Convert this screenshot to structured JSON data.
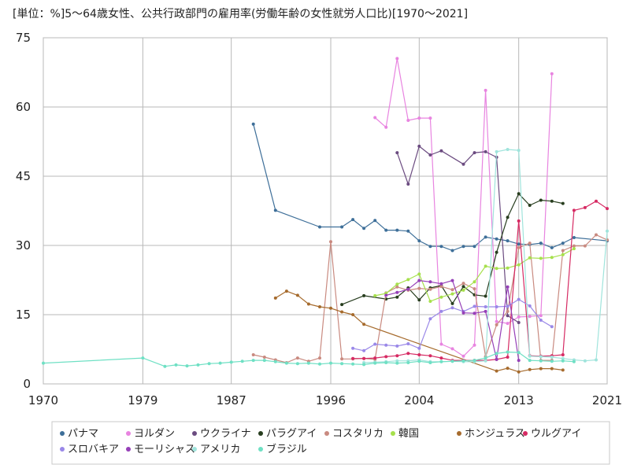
{
  "chart_data": {
    "type": "line",
    "title": "[単位：%]5～64歳女性、公共行政部門の雇用率(労働年齢の女性就労人口比)[1970～2021]",
    "xlabel": "",
    "ylabel": "",
    "xlim": [
      1970,
      2021
    ],
    "ylim": [
      0,
      75
    ],
    "x_ticks": [
      1970,
      1979,
      1987,
      1996,
      2004,
      2013,
      2021
    ],
    "y_ticks": [
      0,
      15,
      30,
      45,
      60,
      75
    ],
    "grid": true,
    "legend_position": "bottom",
    "series": [
      {
        "name": "パナマ",
        "color": "#3e6f99",
        "points": [
          [
            1989,
            56.3
          ],
          [
            1991,
            37.6
          ],
          [
            1995,
            34
          ],
          [
            1997,
            34
          ],
          [
            1998,
            35.6
          ],
          [
            1999,
            33.7
          ],
          [
            2000,
            35.4
          ],
          [
            2001,
            33.3
          ],
          [
            2002,
            33.3
          ],
          [
            2003,
            33.1
          ],
          [
            2004,
            31
          ],
          [
            2005,
            29.8
          ],
          [
            2006,
            29.8
          ],
          [
            2007,
            28.9
          ],
          [
            2008,
            29.8
          ],
          [
            2009,
            29.8
          ],
          [
            2010,
            31.8
          ],
          [
            2011,
            31.4
          ],
          [
            2012,
            31
          ],
          [
            2013,
            30.3
          ],
          [
            2014,
            30.2
          ],
          [
            2015,
            30.5
          ],
          [
            2016,
            29.5
          ],
          [
            2017,
            30.5
          ],
          [
            2018,
            31.7
          ],
          [
            2021,
            31
          ]
        ]
      },
      {
        "name": "ヨルダン",
        "color": "#e884e0",
        "points": [
          [
            2000,
            57.7
          ],
          [
            2001,
            55.6
          ],
          [
            2002,
            70.5
          ],
          [
            2003,
            57.1
          ],
          [
            2004,
            57.6
          ],
          [
            2005,
            57.6
          ],
          [
            2006,
            8.6
          ],
          [
            2007,
            7.6
          ],
          [
            2008,
            6
          ],
          [
            2009,
            8.4
          ],
          [
            2010,
            63.6
          ],
          [
            2011,
            13.5
          ],
          [
            2012,
            13.1
          ],
          [
            2013,
            14.5
          ],
          [
            2014,
            14.6
          ],
          [
            2015,
            14.8
          ],
          [
            2016,
            67.2
          ]
        ]
      },
      {
        "name": "ウクライナ",
        "color": "#6b4b80",
        "points": [
          [
            2002,
            50.1
          ],
          [
            2003,
            43.3
          ],
          [
            2004,
            51.5
          ],
          [
            2005,
            49.6
          ],
          [
            2006,
            50.5
          ],
          [
            2008,
            47.6
          ],
          [
            2009,
            50.1
          ],
          [
            2010,
            50.3
          ],
          [
            2011,
            49.1
          ],
          [
            2012,
            14.8
          ],
          [
            2013,
            13.3
          ]
        ]
      },
      {
        "name": "パラグアイ",
        "color": "#273d1e",
        "points": [
          [
            1997,
            17.2
          ],
          [
            1999,
            19.1
          ],
          [
            2001,
            18.4
          ],
          [
            2002,
            18.8
          ],
          [
            2003,
            20.8
          ],
          [
            2004,
            18.2
          ],
          [
            2005,
            20.8
          ],
          [
            2006,
            21.3
          ],
          [
            2007,
            17.4
          ],
          [
            2008,
            21.1
          ],
          [
            2009,
            19.3
          ],
          [
            2010,
            19
          ],
          [
            2011,
            28.5
          ],
          [
            2012,
            36.1
          ],
          [
            2013,
            41.2
          ],
          [
            2014,
            38.7
          ],
          [
            2015,
            39.8
          ],
          [
            2016,
            39.6
          ],
          [
            2017,
            39.1
          ]
        ]
      },
      {
        "name": "コスタリカ",
        "color": "#c98a80",
        "points": [
          [
            1989,
            6.3
          ],
          [
            1990,
            5.8
          ],
          [
            1991,
            5.2
          ],
          [
            1992,
            4.6
          ],
          [
            1993,
            5.6
          ],
          [
            1994,
            4.9
          ],
          [
            1995,
            5.6
          ],
          [
            1996,
            30.8
          ],
          [
            1997,
            5.4
          ],
          [
            1998,
            5.4
          ],
          [
            1999,
            5.5
          ],
          [
            2000,
            5.3
          ],
          [
            2001,
            19.7
          ],
          [
            2002,
            21
          ],
          [
            2003,
            20.3
          ],
          [
            2004,
            20.7
          ],
          [
            2005,
            20.5
          ],
          [
            2006,
            21.1
          ],
          [
            2007,
            20.4
          ],
          [
            2008,
            21.8
          ],
          [
            2009,
            20.6
          ],
          [
            2010,
            5.9
          ],
          [
            2011,
            12.8
          ],
          [
            2012,
            15.7
          ],
          [
            2013,
            29.5
          ],
          [
            2014,
            30.5
          ],
          [
            2015,
            5.1
          ],
          [
            2016,
            5.1
          ],
          [
            2017,
            28.9
          ],
          [
            2018,
            29.9
          ],
          [
            2019,
            29.9
          ],
          [
            2020,
            32.3
          ],
          [
            2021,
            31.2
          ]
        ]
      },
      {
        "name": "韓国",
        "color": "#a6e04c",
        "points": [
          [
            2000,
            19.1
          ],
          [
            2001,
            19.6
          ],
          [
            2002,
            21.6
          ],
          [
            2003,
            22.6
          ],
          [
            2004,
            23.8
          ],
          [
            2005,
            17.9
          ],
          [
            2006,
            18.8
          ],
          [
            2007,
            19.5
          ],
          [
            2008,
            20.3
          ],
          [
            2009,
            22.1
          ],
          [
            2010,
            25.5
          ],
          [
            2011,
            25
          ],
          [
            2012,
            25.1
          ],
          [
            2013,
            25.8
          ],
          [
            2014,
            27.3
          ],
          [
            2015,
            27.2
          ],
          [
            2016,
            27.4
          ],
          [
            2017,
            28
          ],
          [
            2018,
            29.3
          ]
        ]
      },
      {
        "name": "ホンジュラス",
        "color": "#a66b2d",
        "points": [
          [
            1991,
            18.6
          ],
          [
            1992,
            20.1
          ],
          [
            1993,
            19.2
          ],
          [
            1994,
            17.3
          ],
          [
            1995,
            16.7
          ],
          [
            1996,
            16.4
          ],
          [
            1997,
            15.6
          ],
          [
            1998,
            15
          ],
          [
            1999,
            12.9
          ],
          [
            2011,
            2.8
          ],
          [
            2012,
            3.4
          ],
          [
            2013,
            2.6
          ],
          [
            2014,
            3.1
          ],
          [
            2015,
            3.3
          ],
          [
            2016,
            3.3
          ],
          [
            2017,
            3
          ]
        ]
      },
      {
        "name": "ウルグアイ",
        "color": "#d62a63",
        "points": [
          [
            1998,
            5.5
          ],
          [
            1999,
            5.5
          ],
          [
            2000,
            5.6
          ],
          [
            2001,
            5.9
          ],
          [
            2002,
            6.1
          ],
          [
            2003,
            6.6
          ],
          [
            2004,
            6.3
          ],
          [
            2005,
            6.1
          ],
          [
            2006,
            5.6
          ],
          [
            2007,
            5.1
          ],
          [
            2008,
            5.1
          ],
          [
            2009,
            5.1
          ],
          [
            2010,
            5.1
          ],
          [
            2011,
            5.3
          ],
          [
            2012,
            5.8
          ],
          [
            2013,
            35.3
          ],
          [
            2014,
            6.1
          ],
          [
            2015,
            6
          ],
          [
            2016,
            6.1
          ],
          [
            2017,
            6.3
          ],
          [
            2018,
            37.6
          ],
          [
            2019,
            38.2
          ],
          [
            2020,
            39.6
          ],
          [
            2021,
            38
          ]
        ]
      },
      {
        "name": "スロバキア",
        "color": "#9a88e8",
        "points": [
          [
            1998,
            7.7
          ],
          [
            1999,
            7.2
          ],
          [
            2000,
            8.6
          ],
          [
            2001,
            8.4
          ],
          [
            2002,
            8.2
          ],
          [
            2003,
            8.7
          ],
          [
            2004,
            7.7
          ],
          [
            2005,
            14.1
          ],
          [
            2006,
            15.7
          ],
          [
            2007,
            16.5
          ],
          [
            2008,
            15.7
          ],
          [
            2009,
            16.8
          ],
          [
            2010,
            16.7
          ],
          [
            2011,
            16.7
          ],
          [
            2012,
            16.8
          ],
          [
            2013,
            18.3
          ],
          [
            2014,
            16.9
          ],
          [
            2015,
            13.8
          ],
          [
            2016,
            12.4
          ]
        ]
      },
      {
        "name": "モーリシャス",
        "color": "#9640b8",
        "points": [
          [
            2001,
            19.2
          ],
          [
            2002,
            19.8
          ],
          [
            2003,
            20.5
          ],
          [
            2004,
            22.4
          ],
          [
            2005,
            22.1
          ],
          [
            2006,
            21.7
          ],
          [
            2007,
            22.4
          ],
          [
            2008,
            15.4
          ],
          [
            2009,
            15.3
          ],
          [
            2010,
            15.7
          ],
          [
            2011,
            5.3
          ],
          [
            2012,
            21
          ],
          [
            2013,
            5.1
          ]
        ]
      },
      {
        "name": "アメリカ",
        "color": "#a0e4dc",
        "points": [
          [
            1999,
            4.6
          ],
          [
            2000,
            4.7
          ],
          [
            2001,
            4.8
          ],
          [
            2002,
            5
          ],
          [
            2003,
            5
          ],
          [
            2004,
            5.2
          ],
          [
            2005,
            4.8
          ],
          [
            2006,
            4.8
          ],
          [
            2007,
            4.9
          ],
          [
            2008,
            4.8
          ],
          [
            2009,
            4.8
          ],
          [
            2010,
            5
          ],
          [
            2011,
            50.3
          ],
          [
            2012,
            50.8
          ],
          [
            2013,
            50.6
          ],
          [
            2014,
            6
          ],
          [
            2015,
            5.9
          ],
          [
            2016,
            5.8
          ],
          [
            2017,
            5.5
          ],
          [
            2018,
            5.2
          ],
          [
            2019,
            5
          ],
          [
            2020,
            5.2
          ],
          [
            2021,
            33.1
          ]
        ]
      },
      {
        "name": "ブラジル",
        "color": "#6fe0c4",
        "points": [
          [
            1970,
            4.5
          ],
          [
            1979,
            5.6
          ],
          [
            1981,
            3.8
          ],
          [
            1982,
            4.1
          ],
          [
            1983,
            3.9
          ],
          [
            1984,
            4.1
          ],
          [
            1985,
            4.4
          ],
          [
            1986,
            4.5
          ],
          [
            1987,
            4.7
          ],
          [
            1988,
            4.9
          ],
          [
            1989,
            5.1
          ],
          [
            1990,
            5.1
          ],
          [
            1991,
            4.8
          ],
          [
            1992,
            4.5
          ],
          [
            1993,
            4.4
          ],
          [
            1994,
            4.5
          ],
          [
            1995,
            4.3
          ],
          [
            1996,
            4.5
          ],
          [
            1997,
            4.4
          ],
          [
            1998,
            4.3
          ],
          [
            1999,
            4.2
          ],
          [
            2000,
            4.5
          ],
          [
            2001,
            4.6
          ],
          [
            2002,
            4.5
          ],
          [
            2003,
            4.6
          ],
          [
            2004,
            4.9
          ],
          [
            2005,
            4.6
          ],
          [
            2006,
            4.8
          ],
          [
            2007,
            4.9
          ],
          [
            2008,
            5
          ],
          [
            2009,
            5.1
          ],
          [
            2010,
            5.6
          ],
          [
            2011,
            6.6
          ],
          [
            2012,
            6.9
          ],
          [
            2013,
            6.8
          ],
          [
            2014,
            5.1
          ],
          [
            2015,
            5
          ],
          [
            2016,
            4.9
          ],
          [
            2017,
            5
          ],
          [
            2018,
            4.8
          ]
        ]
      }
    ]
  }
}
